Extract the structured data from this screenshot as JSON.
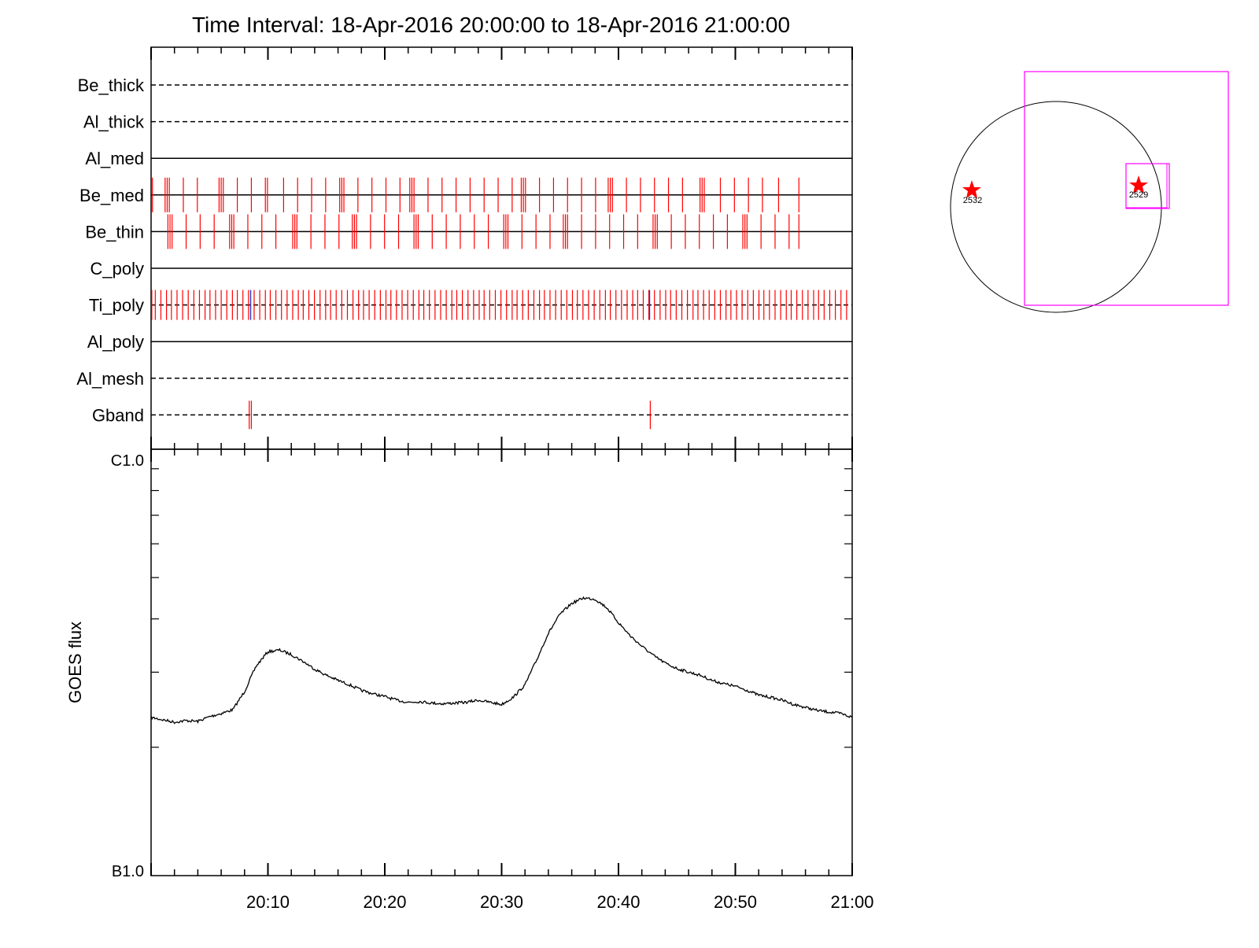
{
  "title": "Time Interval: 18-Apr-2016 20:00:00 to 18-Apr-2016 21:00:00",
  "colors": {
    "axis": "#000000",
    "filter_event": "#ff0000",
    "ti_poly_blue": "#3333cc",
    "box": "#ff00ff",
    "ar_marker": "#ff0000"
  },
  "chart_data": [
    {
      "type": "event-timeline",
      "rows": [
        {
          "name": "Be_thick",
          "style": "dashed",
          "events": []
        },
        {
          "name": "Al_thick",
          "style": "dashed",
          "events": []
        },
        {
          "name": "Al_med",
          "style": "solid",
          "events": []
        },
        {
          "name": "Be_med",
          "style": "solid",
          "events": [
            0.2,
            2.0,
            2.3,
            2.6,
            4.6,
            6.6,
            9.7,
            10.0,
            10.3,
            12.3,
            14.3,
            16.3,
            16.6,
            18.9,
            20.9,
            22.9,
            24.9,
            26.9,
            27.2,
            27.5,
            29.5,
            31.5,
            33.5,
            35.5,
            36.9,
            37.2,
            37.5,
            39.5,
            41.5,
            43.5,
            45.5,
            47.5,
            49.5,
            51.5,
            52.8,
            53.1,
            53.4,
            55.4,
            57.4,
            59.4,
            61.4,
            63.4,
            65.2,
            65.5,
            65.8,
            67.8,
            69.8,
            71.8,
            73.8,
            75.8,
            78.3,
            78.6,
            78.9,
            81.2,
            83.2,
            85.2,
            87.2,
            89.5,
            92.4
          ]
        },
        {
          "name": "Be_thin",
          "style": "solid",
          "events": [
            2.4,
            2.7,
            3.0,
            5.0,
            7.0,
            9.0,
            11.2,
            11.5,
            11.8,
            13.8,
            15.8,
            17.8,
            20.2,
            20.5,
            20.8,
            22.8,
            24.8,
            26.8,
            28.7,
            29.0,
            29.3,
            31.3,
            33.3,
            35.3,
            37.5,
            37.8,
            38.1,
            40.1,
            42.1,
            44.1,
            46.1,
            48.1,
            50.3,
            50.6,
            50.9,
            52.9,
            54.9,
            56.9,
            58.8,
            59.1,
            59.4,
            61.4,
            63.4,
            65.4,
            67.4,
            69.4,
            71.6,
            71.9,
            72.2,
            74.2,
            76.2,
            78.2,
            80.2,
            82.2,
            84.4,
            84.7,
            85.0,
            87.0,
            89.0,
            91.0,
            92.4
          ]
        },
        {
          "name": "C_poly",
          "style": "solid",
          "events": []
        },
        {
          "name": "Ti_poly",
          "style": "dashed",
          "events": [
            0.1,
            0.6,
            1.4,
            2.2,
            2.9,
            3.7,
            4.5,
            5.3,
            6.1,
            6.9,
            7.7,
            8.4,
            9.2,
            10.0,
            10.8,
            11.6,
            12.3,
            13.1,
            13.9,
            14.7,
            15.5,
            16.3,
            17.0,
            17.8,
            18.6,
            19.4,
            20.2,
            21.0,
            21.7,
            22.5,
            23.3,
            24.1,
            24.9,
            25.6,
            26.4,
            27.2,
            28.0,
            28.8,
            29.6,
            30.3,
            31.1,
            31.9,
            32.7,
            33.5,
            34.2,
            35.0,
            35.8,
            36.6,
            37.4,
            38.2,
            38.9,
            39.7,
            40.5,
            41.3,
            42.1,
            42.9,
            43.6,
            44.4,
            45.2,
            46.0,
            46.8,
            47.5,
            48.3,
            49.1,
            49.9,
            50.7,
            51.5,
            52.2,
            53.0,
            53.8,
            54.6,
            55.4,
            56.1,
            56.9,
            57.7,
            58.5,
            59.3,
            60.1,
            60.8,
            61.6,
            62.4,
            63.2,
            64.0,
            64.8,
            65.5,
            66.3,
            67.1,
            67.9,
            68.7,
            69.4,
            70.2,
            71.0,
            71.8,
            72.6,
            73.4,
            74.1,
            74.9,
            75.7,
            76.5,
            77.3,
            78.0,
            78.8,
            79.6,
            80.4,
            81.2,
            82.0,
            82.7,
            83.5,
            84.3,
            85.1,
            85.9,
            86.7,
            87.4,
            88.2,
            89.0,
            89.8,
            90.6,
            91.3,
            92.1,
            92.9,
            93.7,
            94.5,
            95.2,
            96.0,
            96.8,
            97.6,
            98.4,
            99.2
          ],
          "blue_events": [
            14.2,
            71.1
          ]
        },
        {
          "name": "Al_poly",
          "style": "solid",
          "events": []
        },
        {
          "name": "Al_mesh",
          "style": "dashed",
          "events": []
        },
        {
          "name": "Gband",
          "style": "dashed",
          "events": [
            14.0,
            14.3,
            71.2
          ]
        }
      ],
      "x_range_pct": [
        0,
        100
      ]
    },
    {
      "type": "line",
      "ylabel": "GOES flux",
      "ytick_labels": [
        "C1.0",
        "B1.0"
      ],
      "y_scale": "log",
      "ylim": [
        1e-07,
        1e-06
      ],
      "xlim_minutes": [
        0,
        60
      ],
      "xtick_labels": [
        "20:10",
        "20:20",
        "20:30",
        "20:40",
        "20:50",
        "21:00"
      ],
      "xtick_minutes": [
        10,
        20,
        30,
        40,
        50,
        60
      ],
      "series": [
        {
          "x_minutes": [
            0,
            1,
            2,
            3,
            4,
            5,
            6,
            7,
            8,
            9,
            10,
            11,
            12,
            13,
            14,
            15,
            16,
            17,
            18,
            19,
            20,
            21,
            22,
            23,
            24,
            25,
            26,
            27,
            28,
            29,
            30,
            31,
            32,
            33,
            34,
            35,
            36,
            37,
            38,
            39,
            40,
            41,
            42,
            43,
            44,
            45,
            46,
            47,
            48,
            49,
            50,
            51,
            52,
            53,
            54,
            55,
            56,
            57,
            58,
            59,
            60
          ],
          "y_flux": [
            2.35e-07,
            2.32e-07,
            2.29e-07,
            2.31e-07,
            2.3e-07,
            2.36e-07,
            2.4e-07,
            2.45e-07,
            2.7e-07,
            3.1e-07,
            3.35e-07,
            3.38e-07,
            3.3e-07,
            3.18e-07,
            3.05e-07,
            2.95e-07,
            2.87e-07,
            2.8e-07,
            2.72e-07,
            2.67e-07,
            2.63e-07,
            2.58e-07,
            2.55e-07,
            2.56e-07,
            2.54e-07,
            2.53e-07,
            2.54e-07,
            2.55e-07,
            2.58e-07,
            2.55e-07,
            2.52e-07,
            2.62e-07,
            2.8e-07,
            3.2e-07,
            3.7e-07,
            4.1e-07,
            4.35e-07,
            4.48e-07,
            4.45e-07,
            4.25e-07,
            3.92e-07,
            3.65e-07,
            3.45e-07,
            3.28e-07,
            3.15e-07,
            3.06e-07,
            3e-07,
            2.95e-07,
            2.87e-07,
            2.82e-07,
            2.78e-07,
            2.72e-07,
            2.65e-07,
            2.62e-07,
            2.58e-07,
            2.52e-07,
            2.48e-07,
            2.44e-07,
            2.42e-07,
            2.4e-07,
            2.35e-07
          ]
        }
      ]
    }
  ],
  "solar_map": {
    "active_regions": [
      {
        "label": "2532"
      },
      {
        "label": "2529"
      }
    ]
  }
}
